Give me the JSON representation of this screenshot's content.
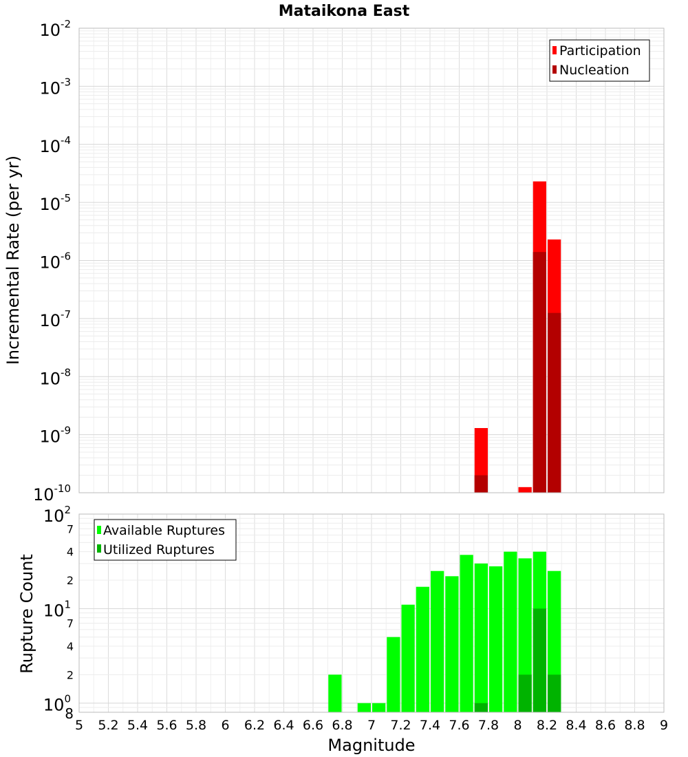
{
  "chart_data": [
    {
      "type": "bar",
      "title": "Mataikona East",
      "ylabel": "Incremental Rate (per yr)",
      "xlabel": "",
      "yscale": "log",
      "ylim": [
        1e-10,
        0.01
      ],
      "xlim": [
        5,
        9
      ],
      "legend_placement": "top-right",
      "grid": true,
      "y_tick_bases": [
        "10",
        "10",
        "10",
        "10",
        "10",
        "10",
        "10",
        "10",
        "10"
      ],
      "y_tick_exponents": [
        "-10",
        "-9",
        "-8",
        "-7",
        "-6",
        "-5",
        "-4",
        "-3",
        "-2"
      ],
      "bar_width": 0.1,
      "series": [
        {
          "name": "Participation",
          "color": "#ff0000",
          "x": [
            7.75,
            8.05,
            8.15,
            8.25
          ],
          "values": [
            1.3e-09,
            1.25e-10,
            2.3e-05,
            2.3e-06
          ]
        },
        {
          "name": "Nucleation",
          "color": "#b30000",
          "x": [
            7.75,
            8.15,
            8.25
          ],
          "values": [
            2e-10,
            1.4e-06,
            1.25e-07
          ]
        }
      ]
    },
    {
      "type": "bar",
      "ylabel": "Rupture Count",
      "xlabel": "Magnitude",
      "yscale": "log",
      "ylim": [
        0.8,
        100
      ],
      "xlim": [
        5,
        9
      ],
      "legend_placement": "top-left",
      "grid": true,
      "x_ticks": [
        "5",
        "5.2",
        "5.4",
        "5.6",
        "5.8",
        "6",
        "6.2",
        "6.4",
        "6.6",
        "6.8",
        "7",
        "7.2",
        "7.4",
        "7.6",
        "7.8",
        "8",
        "8.2",
        "8.4",
        "8.6",
        "8.8",
        "9"
      ],
      "y_major_bases": [
        "10",
        "10",
        "10"
      ],
      "y_major_exponents": [
        "0",
        "1",
        "2"
      ],
      "y_minor_labels": [
        "8",
        "2",
        "4",
        "7",
        "2",
        "4",
        "7"
      ],
      "bar_width": 0.1,
      "series": [
        {
          "name": "Available Ruptures",
          "color": "#00ff00",
          "x": [
            6.75,
            6.95,
            7.05,
            7.15,
            7.25,
            7.35,
            7.45,
            7.55,
            7.65,
            7.75,
            7.85,
            7.95,
            8.05,
            8.15,
            8.25
          ],
          "values": [
            2,
            1,
            1,
            5,
            11,
            17,
            25,
            22,
            37,
            30,
            28,
            40,
            34,
            40,
            25
          ]
        },
        {
          "name": "Utilized Ruptures",
          "color": "#00b300",
          "x": [
            7.75,
            8.05,
            8.15,
            8.25
          ],
          "values": [
            1,
            2,
            10,
            2
          ]
        }
      ]
    }
  ]
}
